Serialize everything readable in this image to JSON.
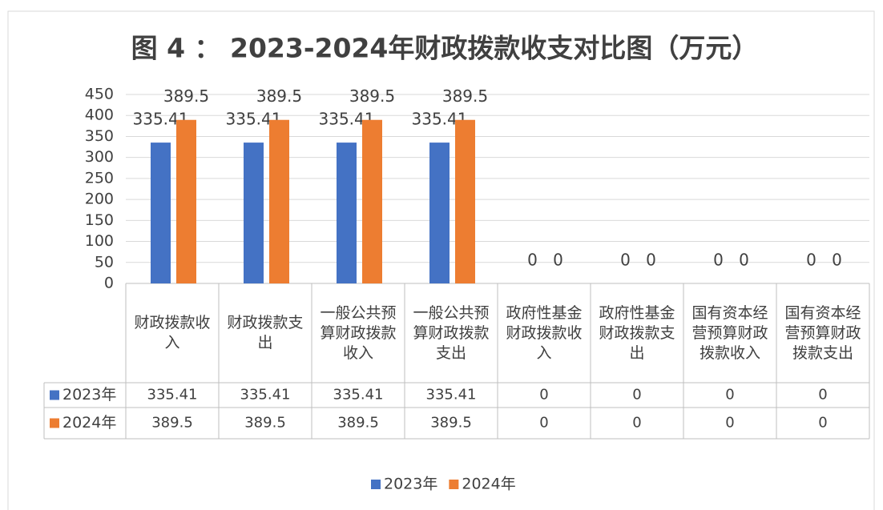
{
  "chart_data": {
    "type": "bar",
    "title": "图 4 ： 2023-2024年财政拨款收支对比图（万元）",
    "categories": [
      "财政拨款收入",
      "财政拨款支出",
      "一般公共预算财政拨款收入",
      "一般公共预算财政拨款支出",
      "政府性基金财政拨款收入",
      "政府性基金财政拨款支出",
      "国有资本经营预算财政拨款收入",
      "国有资本经营预算财政拨款支出"
    ],
    "series": [
      {
        "name": "2023年",
        "color": "#4472c4",
        "values": [
          335.41,
          335.41,
          335.41,
          335.41,
          0,
          0,
          0,
          0
        ]
      },
      {
        "name": "2024年",
        "color": "#ed7d31",
        "values": [
          389.5,
          389.5,
          389.5,
          389.5,
          0,
          0,
          0,
          0
        ]
      }
    ],
    "ylim": [
      0,
      450
    ],
    "yticks": [
      0,
      50,
      100,
      150,
      200,
      250,
      300,
      350,
      400,
      450
    ],
    "grid": true
  }
}
